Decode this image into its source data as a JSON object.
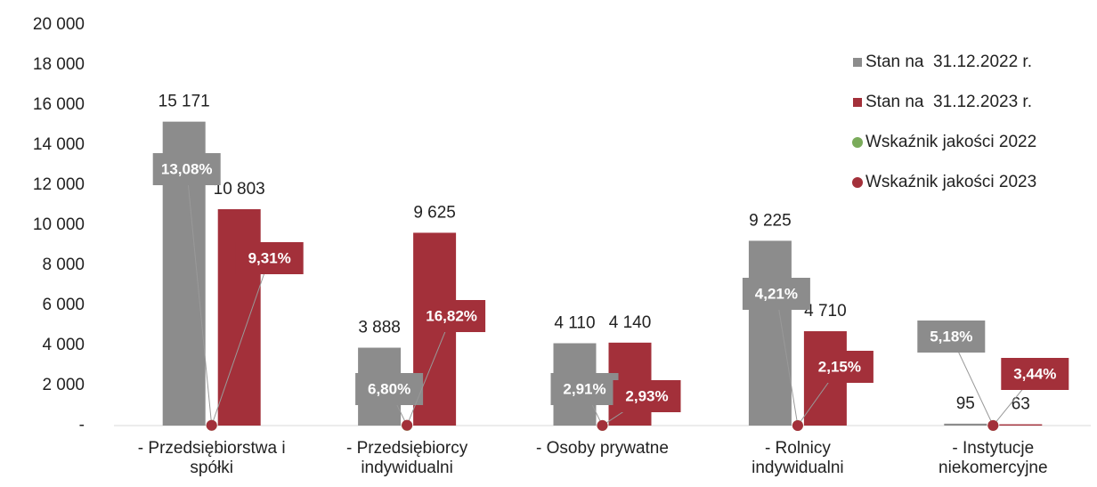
{
  "chart_data": {
    "type": "bar",
    "categories": [
      "- Przedsiębiorstwa i\nspółki",
      "- Przedsiębiorcy\nindywidualni",
      "- Osoby prywatne",
      "- Rolnicy\nindywidualni",
      "- Instytucje\nniekomercyjne"
    ],
    "ylim": [
      0,
      20000
    ],
    "yticks": [
      {
        "value": 0,
        "label": "-"
      },
      {
        "value": 2000,
        "label": "2 000"
      },
      {
        "value": 4000,
        "label": "4 000"
      },
      {
        "value": 6000,
        "label": "6 000"
      },
      {
        "value": 8000,
        "label": "8 000"
      },
      {
        "value": 10000,
        "label": "10 000"
      },
      {
        "value": 12000,
        "label": "12 000"
      },
      {
        "value": 14000,
        "label": "14 000"
      },
      {
        "value": 16000,
        "label": "16 000"
      },
      {
        "value": 18000,
        "label": "18 000"
      },
      {
        "value": 20000,
        "label": "20 000"
      }
    ],
    "legend": "right",
    "series": [
      {
        "name": "Stan na  31.12.2022 r.",
        "type": "bar",
        "color": "#8c8c8c",
        "values": [
          15171,
          3888,
          4110,
          9225,
          95
        ],
        "value_labels": [
          "15 171",
          "3 888",
          "4 110",
          "9 225",
          "95"
        ]
      },
      {
        "name": "Stan na  31.12.2023 r.",
        "type": "bar",
        "color": "#a3303a",
        "values": [
          10803,
          9625,
          4140,
          4710,
          63
        ],
        "value_labels": [
          "10 803",
          "9 625",
          "4 140",
          "4 710",
          "63"
        ]
      },
      {
        "name": "Wskaźnik jakości 2022",
        "type": "scatter",
        "color": "#7aab5a",
        "box_color": "#8c8c8c",
        "values": [
          13.08,
          6.8,
          2.91,
          4.21,
          5.18
        ],
        "value_labels": [
          "13,08%",
          "6,80%",
          "2,91%",
          "4,21%",
          "5,18%"
        ]
      },
      {
        "name": "Wskaźnik jakości 2023",
        "type": "scatter",
        "color": "#a3303a",
        "box_color": "#a3303a",
        "values": [
          9.31,
          16.82,
          2.93,
          2.15,
          3.44
        ],
        "value_labels": [
          "9,31%",
          "16,82%",
          "2,93%",
          "2,15%",
          "3,44%"
        ]
      }
    ]
  }
}
